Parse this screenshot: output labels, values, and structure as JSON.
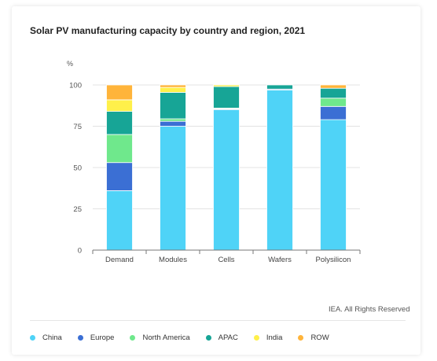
{
  "title": "Solar PV manufacturing capacity by country and region, 2021",
  "unit_label": "%",
  "credit": "IEA. All Rights Reserved",
  "colors": {
    "China": "#4fd3f7",
    "Europe": "#3b6fd4",
    "North America": "#6fe88c",
    "APAC": "#17a596",
    "India": "#fff04a",
    "ROW": "#ffb43a"
  },
  "chart_data": {
    "type": "bar",
    "stacked": true,
    "categories": [
      "Demand",
      "Modules",
      "Cells",
      "Wafers",
      "Polysilicon"
    ],
    "series": [
      {
        "name": "China",
        "values": [
          36,
          75,
          85,
          97,
          79
        ]
      },
      {
        "name": "Europe",
        "values": [
          17,
          3,
          0.5,
          0.5,
          8
        ]
      },
      {
        "name": "North America",
        "values": [
          17,
          1.5,
          0.5,
          0,
          5
        ]
      },
      {
        "name": "APAC",
        "values": [
          14,
          16,
          13,
          2.5,
          6
        ]
      },
      {
        "name": "India",
        "values": [
          7,
          3,
          1,
          0,
          0
        ]
      },
      {
        "name": "ROW",
        "values": [
          9,
          1.5,
          0,
          0,
          2
        ]
      }
    ],
    "ylim": [
      0,
      100
    ],
    "yticks": [
      0,
      25,
      50,
      75,
      100
    ],
    "grid": true,
    "legend_position": "bottom"
  }
}
